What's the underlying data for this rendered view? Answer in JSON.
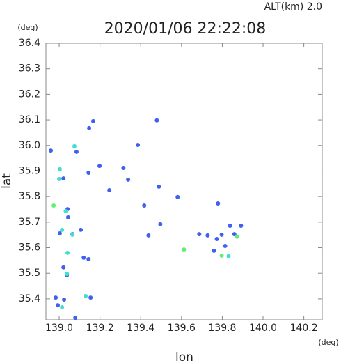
{
  "chart_data": {
    "type": "scatter",
    "header": "ALT(km)  2.0",
    "title": "2020/01/06 22:22:08",
    "x_unit": "(deg)",
    "y_unit": "(deg)",
    "xlabel": "lon",
    "ylabel": "lat",
    "xlim": [
      138.935,
      140.29
    ],
    "ylim": [
      35.318,
      36.4
    ],
    "xticks": [
      {
        "value": 139,
        "label": "139.0"
      },
      139.2,
      139.4,
      139.6,
      139.8,
      {
        "value": 140,
        "label": "140.0"
      },
      140.2
    ],
    "yticks": [
      35.4,
      35.5,
      35.6,
      35.7,
      35.8,
      35.9,
      {
        "value": 36,
        "label": "36.0"
      },
      36.1,
      36.2,
      36.3,
      36.4
    ],
    "series": [
      {
        "color": "#4060f0",
        "x": [
          139.147,
          139.167,
          139.479,
          139.386,
          138.959,
          139.085,
          139.198,
          139.315,
          139.144,
          139.021,
          139.338,
          139.246,
          139.489,
          139.581,
          139.041,
          139.417,
          139.044,
          139.106,
          139.065,
          139.003,
          139.438,
          139.496,
          139.12,
          139.144,
          139.021,
          139.038,
          138.983,
          139.024,
          138.993,
          139.154,
          139.079,
          139.687,
          139.728,
          139.773,
          139.797,
          139.838,
          139.859,
          139.759,
          139.814,
          139.779,
          139.892
        ],
        "y": [
          36.068,
          36.095,
          36.098,
          36.002,
          35.98,
          35.975,
          35.92,
          35.912,
          35.893,
          35.871,
          35.866,
          35.825,
          35.839,
          35.798,
          35.751,
          35.765,
          35.719,
          35.67,
          35.653,
          35.656,
          35.648,
          35.692,
          35.561,
          35.555,
          35.523,
          35.493,
          35.405,
          35.397,
          35.375,
          35.405,
          35.326,
          35.653,
          35.648,
          35.634,
          35.651,
          35.686,
          35.653,
          35.588,
          35.607,
          35.773,
          35.686
        ]
      },
      {
        "color": "#40e0d0",
        "x": [
          139.003,
          139.0,
          139.075,
          139.032,
          139.014,
          139.041,
          139.038,
          139.065,
          139.13,
          139.014,
          139.831
        ],
        "y": [
          35.907,
          35.869,
          35.997,
          35.743,
          35.67,
          35.58,
          35.498,
          35.651,
          35.411,
          35.367,
          35.567
        ]
      },
      {
        "color": "#60f070",
        "x": [
          138.973,
          139.612,
          139.872,
          139.797
        ],
        "y": [
          35.765,
          35.593,
          35.643,
          35.569
        ]
      }
    ]
  }
}
